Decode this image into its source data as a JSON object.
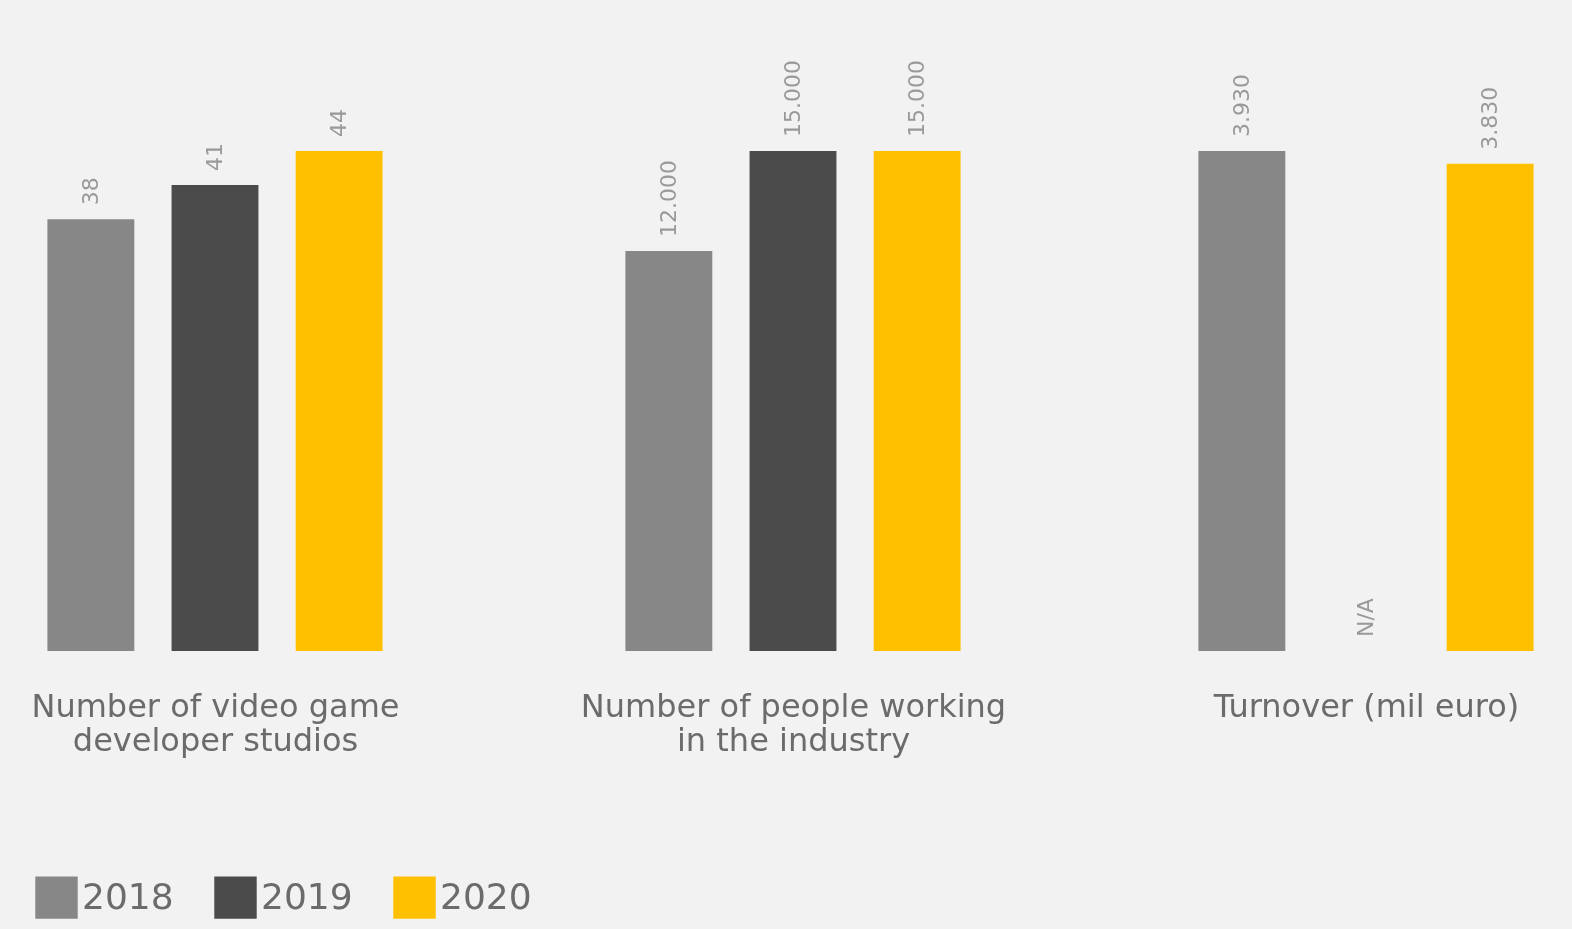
{
  "chart_data": [
    {
      "type": "bar",
      "xlabel": "Number of video game\ndeveloper studios",
      "categories": [
        null
      ],
      "data_labels": true,
      "legend": "bottom",
      "series": [
        {
          "name": "2018",
          "color": "#878787",
          "values": [
            38
          ]
        },
        {
          "name": "2019",
          "color": "#4b4b4b",
          "values": [
            41
          ]
        },
        {
          "name": "2020",
          "color": "#ffc000",
          "values": [
            44
          ]
        }
      ]
    },
    {
      "type": "bar",
      "xlabel": "Number of people working\nin the industry",
      "categories": [
        null
      ],
      "legend": "bottom",
      "series": [
        {
          "name": "2018",
          "color": "#878787",
          "values": [
            12000
          ],
          "value_labels": [
            "12.000"
          ]
        },
        {
          "name": "2019",
          "color": "#4b4b4b",
          "values": [
            15000
          ],
          "value_labels": [
            "15.000"
          ]
        },
        {
          "name": "2020",
          "color": "#ffc000",
          "values": [
            15000
          ],
          "value_labels": [
            "15.000"
          ]
        }
      ]
    },
    {
      "type": "bar",
      "xlabel": "Turnover (mil euro)",
      "categories": [
        null
      ],
      "legend": "bottom",
      "series": [
        {
          "name": "2018",
          "color": "#878787",
          "values": [
            3930
          ],
          "value_labels": [
            "3.930"
          ]
        },
        {
          "name": "2019",
          "color": "#4b4b4b",
          "values": [
            null
          ],
          "value_labels": [
            "N/A"
          ]
        },
        {
          "name": "2020",
          "color": "#ffc000",
          "values": [
            3830
          ],
          "value_labels": [
            "3.830"
          ]
        }
      ]
    }
  ]
}
